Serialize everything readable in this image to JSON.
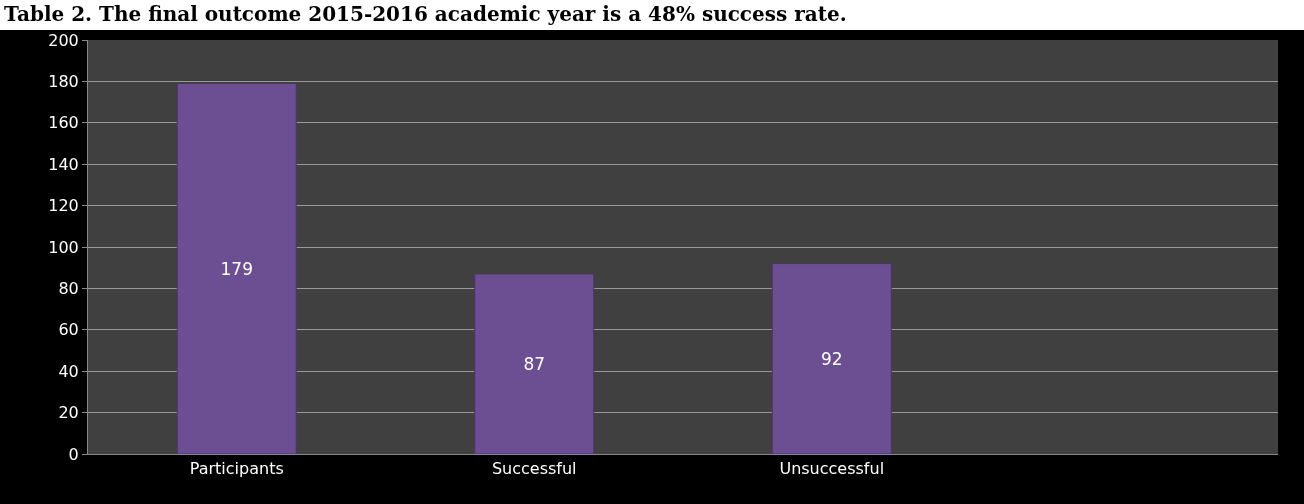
{
  "chart_data": {
    "type": "bar",
    "title": "Table 2.  The final outcome 2015-2016 academic year is a 48% success rate.",
    "categories": [
      "Participants",
      "Successful",
      "Unsuccessful",
      null
    ],
    "values": [
      179,
      87,
      92,
      null
    ],
    "data_labels": true,
    "color": "#6c4f92",
    "ylim": [
      0,
      200
    ],
    "yticks": [
      0,
      20,
      40,
      60,
      80,
      100,
      120,
      140,
      160,
      180,
      200
    ],
    "grid": "y"
  }
}
